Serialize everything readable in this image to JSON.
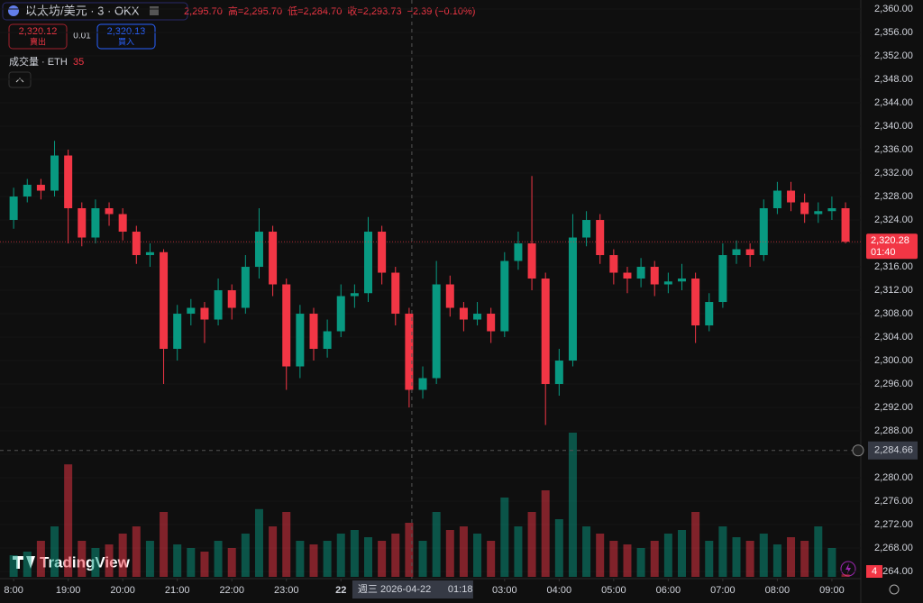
{
  "chart_data": {
    "type": "candlestick",
    "symbol": "以太坊/美元 · 3 · OKX",
    "header_values": [
      "2,295.70",
      "高=2,295.70",
      "低=2,284.70",
      "收=2,293.73",
      "−2.39 (−0.10%)"
    ],
    "sell": {
      "price": "2,320.12",
      "label": "賣出"
    },
    "spread": "0.01",
    "buy": {
      "price": "2,320.13",
      "label": "買入"
    },
    "volume_title": "成交量 · ETH",
    "volume_badge": "4",
    "logo": "TradingView",
    "up_color": "#089981",
    "down_color": "#f23645",
    "xlim": [
      -0.25,
      15.53
    ],
    "xticks": [
      {
        "value": 0,
        "label": "8:00"
      },
      {
        "value": 1,
        "label": "19:00"
      },
      {
        "value": 2,
        "label": "20:00"
      },
      {
        "value": 3,
        "label": "21:00"
      },
      {
        "value": 4,
        "label": "22:00"
      },
      {
        "value": 5,
        "label": "23:00"
      },
      {
        "value": 6,
        "label": "22"
      },
      {
        "value": 9,
        "label": "03:00"
      },
      {
        "value": 10,
        "label": "04:00"
      },
      {
        "value": 11,
        "label": "05:00"
      },
      {
        "value": 12,
        "label": "06:00"
      },
      {
        "value": 13,
        "label": "07:00"
      },
      {
        "value": 14,
        "label": "08:00"
      },
      {
        "value": 15,
        "label": "09:00"
      }
    ],
    "ylim": [
      2258.62,
      2361.54
    ],
    "yticks": [
      {
        "value": 2264,
        "label": "2,264.00"
      },
      {
        "value": 2268,
        "label": "2,268.00"
      },
      {
        "value": 2272,
        "label": "2,272.00"
      },
      {
        "value": 2276,
        "label": "2,276.00"
      },
      {
        "value": 2280,
        "label": "2,280.00"
      },
      {
        "value": 2284,
        "label": "2,284.00"
      },
      {
        "value": 2288,
        "label": "2,288.00"
      },
      {
        "value": 2292,
        "label": "2,292.00"
      },
      {
        "value": 2296,
        "label": "2,296.00"
      },
      {
        "value": 2300,
        "label": "2,300.00"
      },
      {
        "value": 2304,
        "label": "2,304.00"
      },
      {
        "value": 2308,
        "label": "2,308.00"
      },
      {
        "value": 2312,
        "label": "2,312.00"
      },
      {
        "value": 2316,
        "label": "2,316.00"
      },
      {
        "value": 2320,
        "label": "2,320.00"
      },
      {
        "value": 2324,
        "label": "2,324.00"
      },
      {
        "value": 2328,
        "label": "2,328.00"
      },
      {
        "value": 2332,
        "label": "2,332.00"
      },
      {
        "value": 2336,
        "label": "2,336.00"
      },
      {
        "value": 2340,
        "label": "2,340.00"
      },
      {
        "value": 2344,
        "label": "2,344.00"
      },
      {
        "value": 2348,
        "label": "2,348.00"
      },
      {
        "value": 2352,
        "label": "2,352.00"
      },
      {
        "value": 2356,
        "label": "2,356.00"
      },
      {
        "value": 2360,
        "label": "2,360.00"
      }
    ],
    "x": [
      0,
      0.25,
      0.5,
      0.75,
      1,
      1.25,
      1.5,
      1.75,
      2,
      2.25,
      2.5,
      2.75,
      3,
      3.25,
      3.5,
      3.75,
      4,
      4.25,
      4.5,
      4.75,
      5,
      5.25,
      5.5,
      5.75,
      6,
      6.25,
      6.5,
      6.75,
      7,
      7.25,
      7.5,
      7.75,
      8,
      8.25,
      8.5,
      8.75,
      9,
      9.25,
      9.5,
      9.75,
      10,
      10.25,
      10.5,
      10.75,
      11,
      11.25,
      11.5,
      11.75,
      12,
      12.25,
      12.5,
      12.75,
      13,
      13.25,
      13.5,
      13.75,
      14,
      14.25,
      14.5,
      14.75,
      15,
      15.25
    ],
    "open": [
      2324,
      2328,
      2330,
      2329,
      2335,
      2326,
      2321,
      2326,
      2325,
      2322,
      2318,
      2318.5,
      2302,
      2308,
      2309,
      2307,
      2312,
      2309,
      2316,
      2322,
      2313,
      2299,
      2308,
      2302,
      2305,
      2311,
      2311.5,
      2322,
      2315,
      2308,
      2295,
      2297,
      2313,
      2309,
      2307,
      2308,
      2305,
      2317,
      2320,
      2314,
      2296,
      2300,
      2321,
      2324,
      2318,
      2315,
      2314,
      2316,
      2313,
      2313.5,
      2314,
      2306,
      2310,
      2318,
      2319,
      2318,
      2326,
      2329,
      2327,
      2325,
      2325.5,
      2326
    ],
    "high": [
      2329.5,
      2331,
      2331,
      2337.5,
      2336,
      2327,
      2327.5,
      2327,
      2326,
      2323,
      2320,
      2319,
      2309.5,
      2310.5,
      2310,
      2314,
      2313,
      2318,
      2326,
      2323,
      2314,
      2309.5,
      2309,
      2307,
      2313,
      2313,
      2324.5,
      2323,
      2316,
      2309,
      2299,
      2317,
      2314.5,
      2310,
      2310,
      2309,
      2318.5,
      2322,
      2331.5,
      2315,
      2302,
      2325,
      2325.5,
      2325,
      2319,
      2316,
      2317.5,
      2317,
      2315,
      2316.5,
      2315,
      2311.5,
      2320,
      2320.5,
      2320,
      2327.5,
      2330.5,
      2330.5,
      2328.5,
      2327,
      2328,
      2327
    ],
    "low": [
      2322.5,
      2327,
      2327.5,
      2328,
      2320,
      2319.5,
      2320,
      2323,
      2320.5,
      2316.5,
      2316,
      2296,
      2300,
      2306,
      2303,
      2306,
      2307,
      2308,
      2314,
      2311,
      2295,
      2297,
      2300,
      2300.5,
      2304,
      2309,
      2310,
      2313,
      2306,
      2292,
      2293.5,
      2296,
      2307.5,
      2305,
      2306,
      2303,
      2304,
      2315.5,
      2312,
      2289,
      2294,
      2299,
      2319.5,
      2316.5,
      2313,
      2311.5,
      2312.5,
      2311,
      2311.5,
      2312,
      2303,
      2305,
      2309,
      2316.5,
      2316,
      2317,
      2325,
      2325.5,
      2323.5,
      2323.5,
      2324,
      2320
    ],
    "close": [
      2328,
      2330,
      2329,
      2335,
      2326,
      2321,
      2326,
      2325,
      2322,
      2318,
      2318.5,
      2302,
      2308,
      2309,
      2307,
      2312,
      2309,
      2316,
      2322,
      2313,
      2299,
      2308,
      2302,
      2305,
      2311,
      2311.5,
      2322,
      2315,
      2308,
      2295,
      2297,
      2313,
      2309,
      2307,
      2308,
      2305,
      2317,
      2320,
      2314,
      2296,
      2300,
      2321,
      2324,
      2318,
      2315,
      2314,
      2316,
      2313,
      2313.5,
      2314,
      2306,
      2310,
      2318,
      2319,
      2318,
      2326,
      2329,
      2327,
      2325,
      2325.5,
      2326,
      2320.28
    ],
    "vlim": [
      0,
      2500
    ],
    "volume": [
      300,
      350,
      500,
      700,
      1560,
      500,
      400,
      450,
      600,
      700,
      500,
      900,
      450,
      400,
      350,
      500,
      400,
      600,
      940,
      700,
      900,
      500,
      450,
      500,
      600,
      650,
      550,
      500,
      600,
      750,
      500,
      900,
      650,
      700,
      600,
      500,
      1100,
      700,
      900,
      1200,
      800,
      2000,
      700,
      600,
      500,
      450,
      400,
      500,
      600,
      650,
      900,
      500,
      700,
      550,
      500,
      600,
      450,
      550,
      500,
      700,
      400,
      35
    ],
    "last_price": {
      "value": 2320.28,
      "label": "2,320.28",
      "countdown": "01:40"
    },
    "crosshair": {
      "x": 7.3,
      "date": "週三 2026-04-22",
      "time": "01:18",
      "price": {
        "value": 2284.66,
        "label": "2,284.66"
      }
    }
  }
}
